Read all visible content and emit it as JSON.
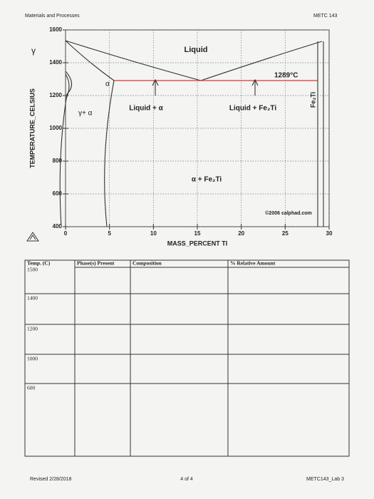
{
  "header": {
    "left": "Materials and Processes",
    "right": "METC 143"
  },
  "diagram": {
    "xlabel": "MASS_PERCENT TI",
    "ylabel": "TEMPERATURE_CELSIUS",
    "xlim": [
      0,
      30
    ],
    "ylim": [
      400,
      1600
    ],
    "xticks": [
      0,
      5,
      10,
      15,
      20,
      25,
      30
    ],
    "yticks": [
      400,
      600,
      800,
      1000,
      1200,
      1400,
      1600
    ],
    "regions": {
      "liquid": "Liquid",
      "gamma": "γ",
      "alpha": "α",
      "eutectic": "1289°C",
      "liquid_alpha": "Liquid + α",
      "liquid_fe2ti": "Liquid + Fe₂Ti",
      "gamma_alpha": "γ+ α",
      "alpha_fe2ti": "α + Fe₂Ti",
      "fe2ti": "Fe₂Ti"
    },
    "copyright": "©2006 calphad.com"
  },
  "table": {
    "headers": [
      "Temp. (C)",
      "Phase(s) Present",
      "Composition",
      "% Relative Amount"
    ],
    "temps": [
      1500,
      1400,
      1200,
      1000,
      600
    ]
  },
  "footer": {
    "left": "Revised 2/28/2018",
    "center": "4 of 4",
    "right": "METC143_Lab 3"
  }
}
